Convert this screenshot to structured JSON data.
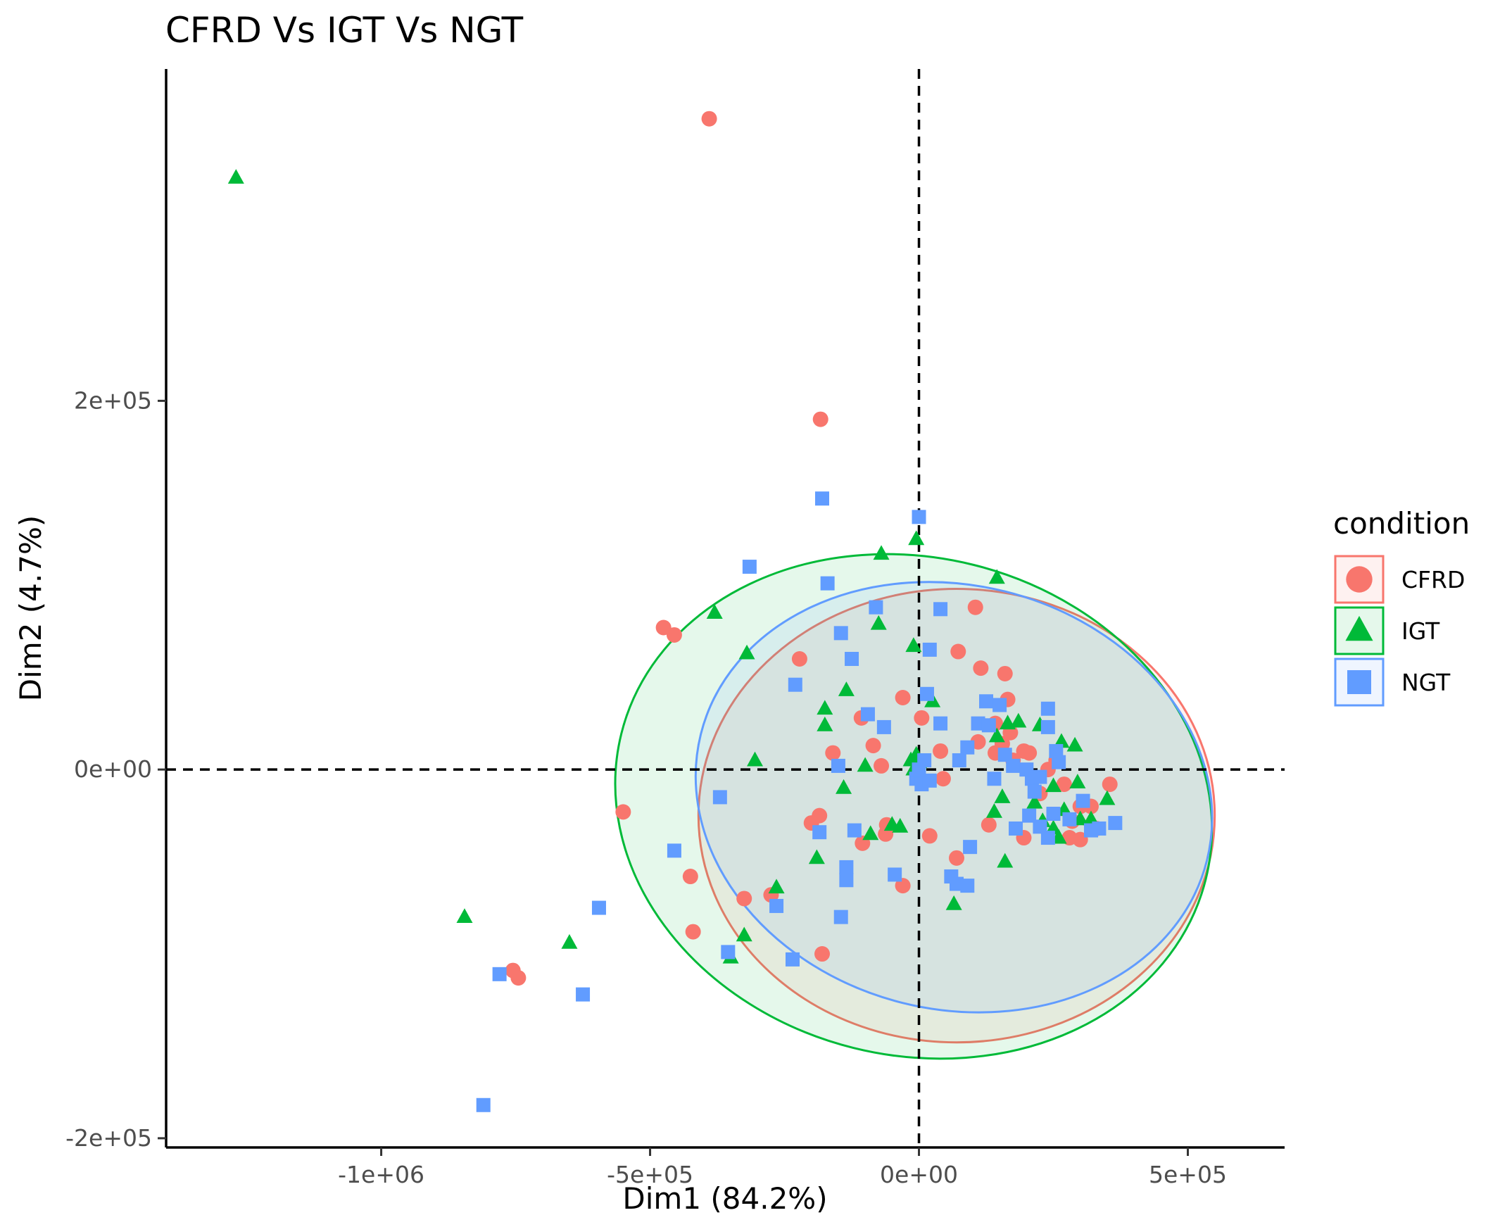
{
  "chart_data": {
    "type": "scatter",
    "title": "CFRD Vs IGT Vs NGT",
    "xlabel": "Dim1 (84.2%)",
    "ylabel": "Dim2 (4.7%)",
    "xlim": [
      -1400000,
      680000
    ],
    "ylim": [
      -205000,
      380000
    ],
    "x_ticks": [
      {
        "value": -1000000,
        "label": "-1e+06"
      },
      {
        "value": -500000,
        "label": "-5e+05"
      },
      {
        "value": 0,
        "label": "0e+00"
      },
      {
        "value": 500000,
        "label": "5e+05"
      }
    ],
    "y_ticks": [
      {
        "value": -200000,
        "label": "-2e+05"
      },
      {
        "value": 0,
        "label": "0e+00"
      },
      {
        "value": 200000,
        "label": "2e+05"
      }
    ],
    "reference_lines": {
      "x": 0,
      "y": 0,
      "style": "dashed"
    },
    "grid": false,
    "legend": {
      "title": "condition",
      "position": "right"
    },
    "series": [
      {
        "name": "CFRD",
        "color": "#F8766D",
        "shape": "circle",
        "ellipse": {
          "cx": 70000,
          "cy": -25000,
          "rx": 480000,
          "ry": 123000,
          "angle_deg": 0
        },
        "points": [
          [
            -390000,
            353000
          ],
          [
            -183000,
            190000
          ],
          [
            -475000,
            77000
          ],
          [
            -455000,
            73000
          ],
          [
            -550000,
            -23000
          ],
          [
            -425000,
            -58000
          ],
          [
            -420000,
            -88000
          ],
          [
            -755000,
            -109000
          ],
          [
            -745000,
            -113000
          ],
          [
            -325000,
            -70000
          ],
          [
            -275000,
            -68000
          ],
          [
            -180000,
            -100000
          ],
          [
            -222000,
            60000
          ],
          [
            -160000,
            9000
          ],
          [
            -185000,
            -25000
          ],
          [
            -200000,
            -29000
          ],
          [
            -107000,
            28000
          ],
          [
            -85000,
            13000
          ],
          [
            -70000,
            2000
          ],
          [
            -105000,
            -40000
          ],
          [
            -60000,
            -30000
          ],
          [
            -62000,
            -35000
          ],
          [
            -30000,
            -63000
          ],
          [
            -30000,
            39000
          ],
          [
            5000,
            28000
          ],
          [
            20000,
            -36000
          ],
          [
            45000,
            -5000
          ],
          [
            40000,
            10000
          ],
          [
            70000,
            -48000
          ],
          [
            73000,
            64000
          ],
          [
            105000,
            88000
          ],
          [
            115000,
            55000
          ],
          [
            160000,
            52000
          ],
          [
            165000,
            38000
          ],
          [
            142000,
            25000
          ],
          [
            130000,
            -30000
          ],
          [
            110000,
            15000
          ],
          [
            155000,
            14000
          ],
          [
            142000,
            9000
          ],
          [
            175000,
            5000
          ],
          [
            195000,
            10000
          ],
          [
            205000,
            9000
          ],
          [
            195000,
            -37000
          ],
          [
            225000,
            -13000
          ],
          [
            240000,
            0
          ],
          [
            255000,
            5000
          ],
          [
            270000,
            -8000
          ],
          [
            285000,
            -28000
          ],
          [
            280000,
            -37000
          ],
          [
            300000,
            -38000
          ],
          [
            320000,
            -20000
          ],
          [
            330000,
            -32000
          ],
          [
            355000,
            -8000
          ],
          [
            300000,
            -20000
          ],
          [
            170000,
            20000
          ]
        ]
      },
      {
        "name": "IGT",
        "color": "#00BA38",
        "shape": "triangle",
        "ellipse": {
          "cx": -10000,
          "cy": -20000,
          "rx": 560000,
          "ry": 135000,
          "angle_deg": 14
        },
        "points": [
          [
            -1270000,
            321000
          ],
          [
            -845000,
            -80000
          ],
          [
            -650000,
            -94000
          ],
          [
            -350000,
            -102000
          ],
          [
            -325000,
            -90000
          ],
          [
            -265000,
            -64000
          ],
          [
            -190000,
            -48000
          ],
          [
            -380000,
            85000
          ],
          [
            -320000,
            63000
          ],
          [
            -305000,
            5000
          ],
          [
            -175000,
            33000
          ],
          [
            -175000,
            24000
          ],
          [
            -135000,
            43000
          ],
          [
            -140000,
            -10000
          ],
          [
            -70000,
            117000
          ],
          [
            -75000,
            79000
          ],
          [
            -10000,
            67000
          ],
          [
            -5000,
            125000
          ],
          [
            145000,
            104000
          ],
          [
            -100000,
            2000
          ],
          [
            -90000,
            -35000
          ],
          [
            -50000,
            -30000
          ],
          [
            -35000,
            -31000
          ],
          [
            -15000,
            5000
          ],
          [
            -5000,
            8000
          ],
          [
            0,
            4000
          ],
          [
            -10000,
            0
          ],
          [
            25000,
            37000
          ],
          [
            65000,
            -73000
          ],
          [
            160000,
            -50000
          ],
          [
            140000,
            -23000
          ],
          [
            155000,
            -15000
          ],
          [
            215000,
            -18000
          ],
          [
            230000,
            -28000
          ],
          [
            250000,
            -32000
          ],
          [
            165000,
            25000
          ],
          [
            185000,
            26000
          ],
          [
            225000,
            24000
          ],
          [
            265000,
            15000
          ],
          [
            290000,
            13000
          ],
          [
            295000,
            -7000
          ],
          [
            300000,
            -27000
          ],
          [
            350000,
            -16000
          ],
          [
            320000,
            -27000
          ],
          [
            250000,
            -9000
          ],
          [
            260000,
            -37000
          ],
          [
            145000,
            18000
          ],
          [
            270000,
            -22000
          ]
        ]
      },
      {
        "name": "NGT",
        "color": "#619CFF",
        "shape": "square",
        "ellipse": {
          "cx": 65000,
          "cy": -15000,
          "rx": 485000,
          "ry": 115000,
          "angle_deg": 14
        },
        "points": [
          [
            -810000,
            -182000
          ],
          [
            -780000,
            -111000
          ],
          [
            -625000,
            -122000
          ],
          [
            -595000,
            -75000
          ],
          [
            -455000,
            -44000
          ],
          [
            -370000,
            -15000
          ],
          [
            -355000,
            -99000
          ],
          [
            -265000,
            -74000
          ],
          [
            -235000,
            -103000
          ],
          [
            -230000,
            46000
          ],
          [
            -180000,
            147000
          ],
          [
            -170000,
            101000
          ],
          [
            -315000,
            110000
          ],
          [
            -145000,
            74000
          ],
          [
            -125000,
            60000
          ],
          [
            -185000,
            -34000
          ],
          [
            -120000,
            -33000
          ],
          [
            -135000,
            -53000
          ],
          [
            -135000,
            -60000
          ],
          [
            -145000,
            -80000
          ],
          [
            -150000,
            2000
          ],
          [
            -95000,
            30000
          ],
          [
            -80000,
            88000
          ],
          [
            -65000,
            23000
          ],
          [
            -45000,
            -57000
          ],
          [
            0,
            137000
          ],
          [
            40000,
            87000
          ],
          [
            20000,
            65000
          ],
          [
            15000,
            41000
          ],
          [
            40000,
            25000
          ],
          [
            -5000,
            -5000
          ],
          [
            5000,
            -8000
          ],
          [
            20000,
            -6000
          ],
          [
            0,
            0
          ],
          [
            10000,
            5000
          ],
          [
            60000,
            -58000
          ],
          [
            70000,
            -62000
          ],
          [
            90000,
            -63000
          ],
          [
            95000,
            -42000
          ],
          [
            75000,
            5000
          ],
          [
            90000,
            12000
          ],
          [
            110000,
            25000
          ],
          [
            125000,
            37000
          ],
          [
            130000,
            24000
          ],
          [
            150000,
            35000
          ],
          [
            160000,
            8000
          ],
          [
            140000,
            -5000
          ],
          [
            175000,
            2000
          ],
          [
            180000,
            -32000
          ],
          [
            200000,
            0
          ],
          [
            210000,
            -5000
          ],
          [
            215000,
            -12000
          ],
          [
            205000,
            -25000
          ],
          [
            225000,
            -4000
          ],
          [
            240000,
            -37000
          ],
          [
            240000,
            23000
          ],
          [
            240000,
            33000
          ],
          [
            255000,
            10000
          ],
          [
            260000,
            4000
          ],
          [
            280000,
            -27000
          ],
          [
            305000,
            -17000
          ],
          [
            320000,
            -33000
          ],
          [
            335000,
            -32000
          ],
          [
            365000,
            -29000
          ],
          [
            225000,
            -31000
          ],
          [
            250000,
            -24000
          ]
        ]
      }
    ]
  }
}
